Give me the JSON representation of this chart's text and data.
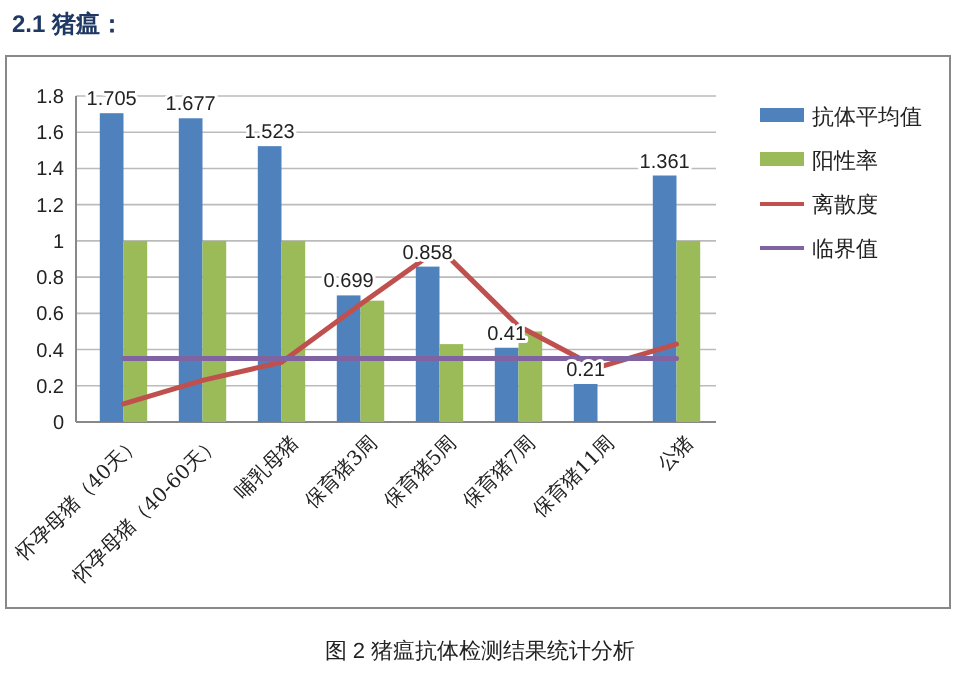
{
  "chart_data": {
    "type": "bar",
    "title": "2.1 猪瘟：",
    "annotations": [
      "图 2 猪瘟抗体检测结果统计分析"
    ],
    "categories": [
      "怀孕母猪（40天）",
      "怀孕母猪（40-60天）",
      "哺乳母猪",
      "保育猪3周",
      "保育猪5周",
      "保育猪7周",
      "保育猪11周",
      "公猪"
    ],
    "series": [
      {
        "name": "抗体平均值",
        "color": "#4f81bd",
        "values": [
          1.705,
          1.677,
          1.523,
          0.699,
          0.858,
          0.41,
          0.21,
          1.361
        ],
        "value_labels": [
          "1.705",
          "1.677",
          "1.523",
          "0.699",
          "0.858",
          "0.41",
          "0.21",
          "1.361"
        ]
      },
      {
        "name": "阳性率",
        "color": "#9bbb59",
        "values": [
          1,
          1,
          1,
          0.67,
          0.43,
          0.5,
          0,
          1
        ]
      },
      {
        "name": "离散度",
        "type": "line",
        "color": "#c0504d",
        "values": [
          0.1,
          0.23,
          0.33,
          0.65,
          0.96,
          0.53,
          0.3,
          0.43
        ]
      },
      {
        "name": "临界值",
        "type": "line",
        "color": "#8064a2",
        "values": [
          0.35,
          0.35,
          0.35,
          0.35,
          0.35,
          0.35,
          0.35,
          0.35
        ]
      }
    ],
    "ylim": [
      0,
      1.8
    ],
    "yticks": [
      0,
      0.2,
      0.4,
      0.6,
      0.8,
      1,
      1.2,
      1.4,
      1.6,
      1.8
    ],
    "grid": "y",
    "legend": "right"
  }
}
